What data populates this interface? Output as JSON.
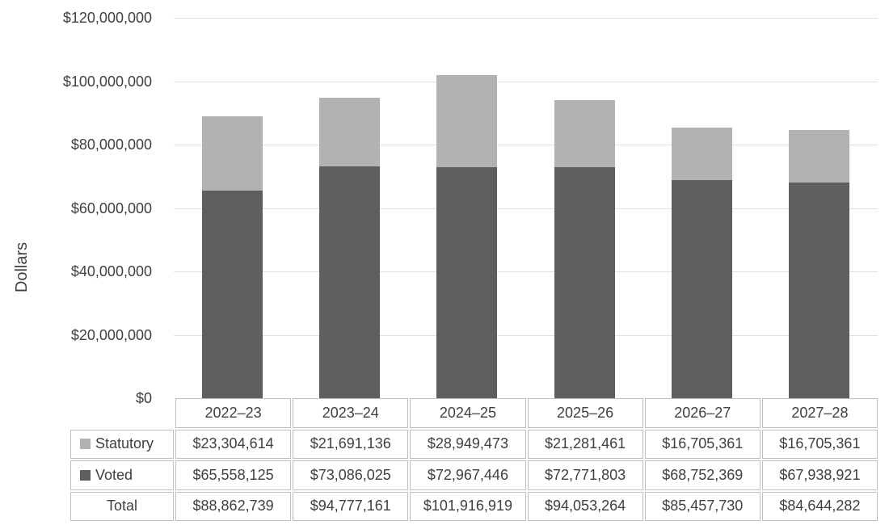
{
  "y_axis": {
    "title": "Dollars",
    "tick_labels": [
      "$120,000,000",
      "$100,000,000",
      "$80,000,000",
      "$60,000,000",
      "$40,000,000",
      "$20,000,000",
      "$0"
    ]
  },
  "chart_data": {
    "type": "bar",
    "stacked": true,
    "title": "",
    "xlabel": "",
    "ylabel": "Dollars",
    "ylim": [
      0,
      120000000
    ],
    "ytick_interval": 20000000,
    "grid": true,
    "legend_position": "table-left",
    "categories": [
      "2022–23",
      "2023–24",
      "2024–25",
      "2025–26",
      "2026–27",
      "2027–28"
    ],
    "series": [
      {
        "name": "Statutory",
        "color": "#b2b2b2",
        "values": [
          23304614,
          21691136,
          28949473,
          21281461,
          16705361,
          16705361
        ]
      },
      {
        "name": "Voted",
        "color": "#5e5e5e",
        "values": [
          65558125,
          73086025,
          72967446,
          72771803,
          68752369,
          67938921
        ]
      }
    ],
    "totals": [
      88862739,
      94777161,
      101916919,
      94053264,
      85457730,
      84644282
    ]
  },
  "table": {
    "rows": [
      {
        "label": "Statutory",
        "swatch": "#b2b2b2",
        "values": [
          "$23,304,614",
          "$21,691,136",
          "$28,949,473",
          "$21,281,461",
          "$16,705,361",
          "$16,705,361"
        ]
      },
      {
        "label": "Voted",
        "swatch": "#5e5e5e",
        "values": [
          "$65,558,125",
          "$73,086,025",
          "$72,967,446",
          "$72,771,803",
          "$68,752,369",
          "$67,938,921"
        ]
      },
      {
        "label": "Total",
        "swatch": null,
        "values": [
          "$88,862,739",
          "$94,777,161",
          "$101,916,919",
          "$94,053,264",
          "$85,457,730",
          "$84,644,282"
        ]
      }
    ]
  },
  "colors": {
    "statutory": "#b2b2b2",
    "voted": "#5e5e5e",
    "gridline": "#e0e0e0",
    "table_border": "#bfbfbf",
    "text": "#404040",
    "background": "#ffffff"
  }
}
